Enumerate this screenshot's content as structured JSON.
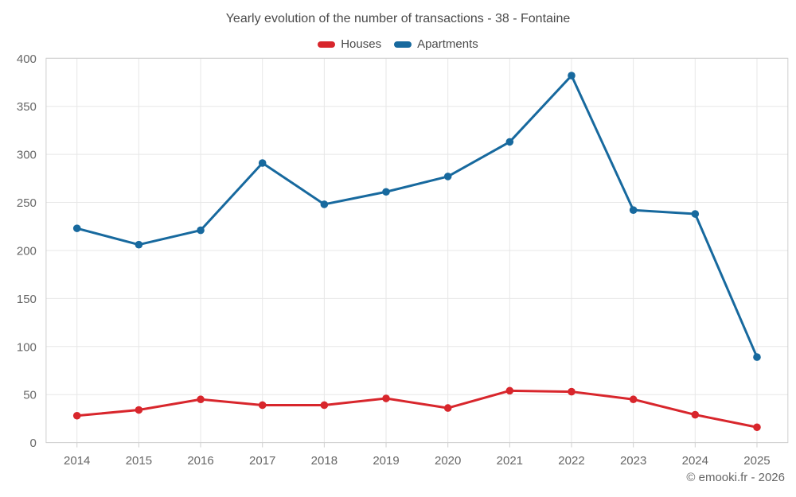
{
  "title": "Yearly evolution of the number of transactions - 38 - Fontaine",
  "footer": "© emooki.fr - 2026",
  "colors": {
    "houses": "#d8262c",
    "apartments": "#17699e",
    "grid": "#e7e7e7",
    "axis": "#cfcfcf",
    "title_text": "#4a4a4a",
    "label_text": "#666666"
  },
  "chart_data": {
    "type": "line",
    "title": "Yearly evolution of the number of transactions - 38 - Fontaine",
    "xlabel": "",
    "ylabel": "",
    "categories": [
      "2014",
      "2015",
      "2016",
      "2017",
      "2018",
      "2019",
      "2020",
      "2021",
      "2022",
      "2023",
      "2024",
      "2025"
    ],
    "series": [
      {
        "name": "Houses",
        "color": "#d8262c",
        "values": [
          28,
          34,
          45,
          39,
          39,
          46,
          36,
          54,
          53,
          45,
          29,
          16
        ]
      },
      {
        "name": "Apartments",
        "color": "#17699e",
        "values": [
          223,
          206,
          221,
          291,
          248,
          261,
          277,
          313,
          382,
          242,
          238,
          89
        ]
      }
    ],
    "ylim": [
      0,
      400
    ],
    "ytick_step": 50,
    "grid": true,
    "legend_position": "top",
    "annotation": "© emooki.fr - 2026"
  }
}
